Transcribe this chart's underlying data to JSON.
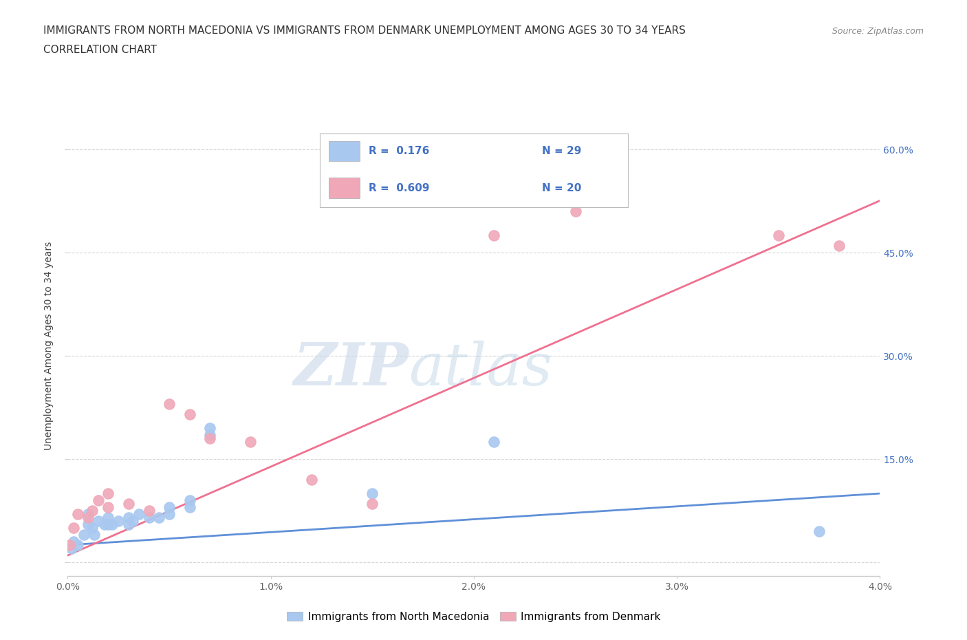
{
  "title_line1": "IMMIGRANTS FROM NORTH MACEDONIA VS IMMIGRANTS FROM DENMARK UNEMPLOYMENT AMONG AGES 30 TO 34 YEARS",
  "title_line2": "CORRELATION CHART",
  "source_text": "Source: ZipAtlas.com",
  "ylabel": "Unemployment Among Ages 30 to 34 years",
  "xlim": [
    0.0,
    0.04
  ],
  "ylim": [
    -0.02,
    0.65
  ],
  "xticks": [
    0.0,
    0.01,
    0.02,
    0.03,
    0.04
  ],
  "xtick_labels": [
    "0.0%",
    "1.0%",
    "2.0%",
    "3.0%",
    "4.0%"
  ],
  "yticks": [
    0.0,
    0.15,
    0.3,
    0.45,
    0.6
  ],
  "ytick_labels": [
    "",
    "15.0%",
    "30.0%",
    "45.0%",
    "60.0%"
  ],
  "watermark_zip": "ZIP",
  "watermark_atlas": "atlas",
  "legend_text_blue": "R =  0.176   N = 29",
  "legend_text_pink": "R =  0.609   N = 20",
  "legend_R1": "R =  0.176",
  "legend_N1": "N = 29",
  "legend_R2": "R =  0.609",
  "legend_N2": "N = 20",
  "color_blue": "#a8c8f0",
  "color_pink": "#f0a8b8",
  "color_blue_line": "#6090d8",
  "color_pink_line": "#f07090",
  "color_blue_text": "#4472c4",
  "color_pink_text": "#c04060",
  "scatter_blue_x": [
    0.0002,
    0.0003,
    0.0005,
    0.0008,
    0.001,
    0.001,
    0.0012,
    0.0013,
    0.0015,
    0.0018,
    0.002,
    0.002,
    0.0022,
    0.0025,
    0.003,
    0.003,
    0.0032,
    0.0035,
    0.004,
    0.0045,
    0.005,
    0.005,
    0.006,
    0.006,
    0.007,
    0.007,
    0.015,
    0.021,
    0.037
  ],
  "scatter_blue_y": [
    0.02,
    0.03,
    0.025,
    0.04,
    0.055,
    0.07,
    0.05,
    0.04,
    0.06,
    0.055,
    0.055,
    0.065,
    0.055,
    0.06,
    0.055,
    0.065,
    0.06,
    0.07,
    0.065,
    0.065,
    0.08,
    0.07,
    0.08,
    0.09,
    0.185,
    0.195,
    0.1,
    0.175,
    0.045
  ],
  "scatter_pink_x": [
    0.0001,
    0.0003,
    0.0005,
    0.001,
    0.0012,
    0.0015,
    0.002,
    0.002,
    0.003,
    0.004,
    0.005,
    0.006,
    0.007,
    0.009,
    0.012,
    0.015,
    0.021,
    0.025,
    0.035,
    0.038
  ],
  "scatter_pink_y": [
    0.025,
    0.05,
    0.07,
    0.065,
    0.075,
    0.09,
    0.08,
    0.1,
    0.085,
    0.075,
    0.23,
    0.215,
    0.18,
    0.175,
    0.12,
    0.085,
    0.475,
    0.51,
    0.475,
    0.46
  ],
  "grid_color": "#cccccc",
  "bg_color": "#ffffff",
  "legend_label_blue": "Immigrants from North Macedonia",
  "legend_label_pink": "Immigrants from Denmark"
}
